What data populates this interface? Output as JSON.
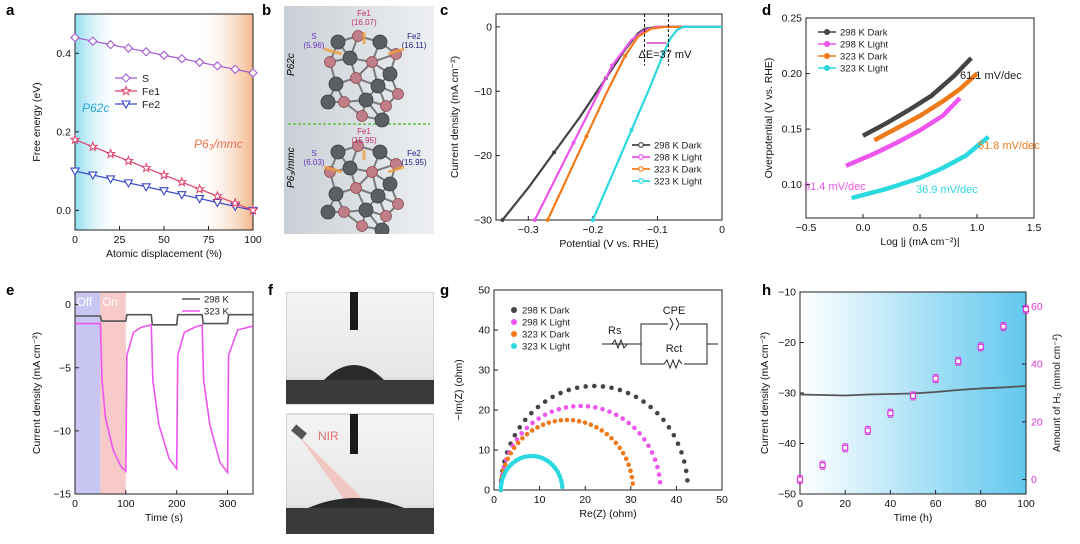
{
  "panel_labels": [
    "a",
    "b",
    "c",
    "d",
    "e",
    "f",
    "g",
    "h"
  ],
  "chart_data": [
    {
      "id": "a",
      "type": "line",
      "xlabel": "Atomic displacement (%)",
      "ylabel": "Free energy (eV)",
      "xlim": [
        0,
        100
      ],
      "ylim": [
        -0.05,
        0.5
      ],
      "xticks": [
        0,
        25,
        50,
        75,
        100
      ],
      "yticks": [
        0.0,
        0.2,
        0.4
      ],
      "region_labels": [
        "P62c",
        "P6₃/mmc"
      ],
      "series": [
        {
          "name": "Fe2",
          "color": "#3a47c8",
          "marker": "triangle-down",
          "x": [
            0,
            10,
            20,
            30,
            40,
            50,
            60,
            70,
            80,
            90,
            100
          ],
          "values": [
            0.1,
            0.09,
            0.08,
            0.07,
            0.06,
            0.05,
            0.04,
            0.03,
            0.02,
            0.01,
            0.0
          ]
        },
        {
          "name": "Fe1",
          "color": "#e0406a",
          "marker": "star",
          "x": [
            0,
            10,
            20,
            30,
            40,
            50,
            60,
            70,
            80,
            90,
            100
          ],
          "values": [
            0.18,
            0.162,
            0.144,
            0.126,
            0.108,
            0.09,
            0.072,
            0.054,
            0.036,
            0.018,
            0.0
          ]
        },
        {
          "name": "S",
          "color": "#a45ad0",
          "marker": "diamond",
          "x": [
            0,
            10,
            20,
            30,
            40,
            50,
            60,
            70,
            80,
            90,
            100
          ],
          "values": [
            0.44,
            0.431,
            0.422,
            0.413,
            0.404,
            0.395,
            0.386,
            0.377,
            0.368,
            0.359,
            0.35
          ]
        }
      ]
    },
    {
      "id": "b",
      "type": "diagram",
      "top": {
        "phase": "P62c",
        "S": "S\n(5.96)",
        "Fe1": "Fe1\n(16.07)",
        "Fe2": "Fe2\n(16.11)"
      },
      "bottom": {
        "phase": "P6₃/mmc",
        "S": "S\n(6.03)",
        "Fe1": "Fe1\n(15.95)",
        "Fe2": "Fe2\n(15.95)"
      }
    },
    {
      "id": "c",
      "type": "line",
      "xlabel": "Potential (V vs. RHE)",
      "ylabel": "Current density (mA cm⁻²)",
      "xlim": [
        -0.35,
        0.0
      ],
      "ylim": [
        -30,
        2
      ],
      "xticks": [
        -0.3,
        -0.2,
        -0.1,
        0.0
      ],
      "yticks": [
        0,
        -10,
        -20,
        -30
      ],
      "annotation": "ΔE=37 mV",
      "series": [
        {
          "name": "298 K Dark",
          "color": "#444444",
          "x": [
            -0.34,
            -0.3,
            -0.26,
            -0.22,
            -0.18,
            -0.15,
            -0.13,
            -0.12,
            -0.1,
            0.0
          ],
          "values": [
            -30,
            -25,
            -19.5,
            -14,
            -8,
            -3.5,
            -1,
            -0.3,
            0,
            0
          ]
        },
        {
          "name": "298 K Light",
          "color": "#ee55ee",
          "x": [
            -0.29,
            -0.26,
            -0.23,
            -0.2,
            -0.17,
            -0.14,
            -0.12,
            -0.1,
            0.0
          ],
          "values": [
            -30,
            -24,
            -18,
            -12,
            -6,
            -2,
            -0.5,
            0,
            0
          ]
        },
        {
          "name": "323 K Dark",
          "color": "#f07a1a",
          "x": [
            -0.27,
            -0.24,
            -0.21,
            -0.18,
            -0.15,
            -0.13,
            -0.11,
            -0.09,
            0.0
          ],
          "values": [
            -30,
            -23.5,
            -17,
            -10.5,
            -4.5,
            -1.5,
            -0.3,
            0,
            0
          ]
        },
        {
          "name": "323 K Light",
          "color": "#2ad8e0",
          "x": [
            -0.2,
            -0.17,
            -0.14,
            -0.11,
            -0.09,
            -0.08,
            -0.07,
            -0.06,
            0.0
          ],
          "values": [
            -30,
            -23,
            -16,
            -9,
            -4,
            -1.8,
            -0.5,
            0,
            0
          ]
        }
      ]
    },
    {
      "id": "d",
      "type": "line",
      "xlabel": "Log |j (mA cm⁻²)|",
      "ylabel": "Overpotential (V vs. RHE)",
      "xlim": [
        -0.5,
        1.5
      ],
      "ylim": [
        0.07,
        0.25
      ],
      "xticks": [
        -0.5,
        0.0,
        0.5,
        1.0,
        1.5
      ],
      "yticks": [
        0.1,
        0.15,
        0.2,
        0.25
      ],
      "slope_labels": [
        "61.1 mV/dec",
        "51.8 mV/dec",
        "51.4 mV/dec",
        "36.9 mV/dec"
      ],
      "series": [
        {
          "name": "298 K Dark",
          "color": "#444444",
          "x": [
            0.0,
            0.2,
            0.4,
            0.6,
            0.8,
            0.95
          ],
          "values": [
            0.144,
            0.155,
            0.167,
            0.18,
            0.198,
            0.214
          ]
        },
        {
          "name": "298 K Light",
          "color": "#ee55ee",
          "x": [
            -0.15,
            0.1,
            0.3,
            0.5,
            0.7,
            0.85
          ],
          "values": [
            0.117,
            0.128,
            0.138,
            0.149,
            0.162,
            0.178
          ]
        },
        {
          "name": "323 K Dark",
          "color": "#f07a1a",
          "x": [
            0.1,
            0.3,
            0.5,
            0.7,
            0.85,
            1.0
          ],
          "values": [
            0.14,
            0.151,
            0.162,
            0.175,
            0.186,
            0.2
          ]
        },
        {
          "name": "323 K Light",
          "color": "#2ad8e0",
          "x": [
            -0.1,
            0.2,
            0.5,
            0.7,
            0.9,
            1.1
          ],
          "values": [
            0.088,
            0.096,
            0.106,
            0.115,
            0.126,
            0.143
          ]
        }
      ]
    },
    {
      "id": "e",
      "type": "line",
      "xlabel": "Time (s)",
      "ylabel": "Current density (mA cm⁻²)",
      "xlim": [
        0,
        350
      ],
      "ylim": [
        -15,
        1
      ],
      "xticks": [
        0,
        100,
        200,
        300
      ],
      "yticks": [
        0,
        -5,
        -10,
        -15
      ],
      "region_labels": [
        "Off",
        "On"
      ],
      "series": [
        {
          "name": "298 K",
          "color": "#555555",
          "x": [
            0,
            50,
            52,
            100,
            102,
            150,
            152,
            200,
            202,
            250,
            252,
            300,
            302,
            350
          ],
          "values": [
            -0.9,
            -0.9,
            -1.3,
            -1.3,
            -0.8,
            -0.8,
            -1.6,
            -1.6,
            -0.8,
            -0.8,
            -1.5,
            -1.5,
            -0.8,
            -0.8
          ]
        },
        {
          "name": "323 K",
          "color": "#ee55ee",
          "x": [
            0,
            50,
            53,
            60,
            75,
            90,
            100,
            102,
            115,
            130,
            150,
            153,
            165,
            185,
            200,
            202,
            215,
            235,
            250,
            253,
            265,
            285,
            300,
            302,
            320,
            350
          ],
          "values": [
            -1.5,
            -1.5,
            -6,
            -9,
            -11.5,
            -12.8,
            -13.2,
            -4,
            -2.2,
            -1.8,
            -1.6,
            -6,
            -9.5,
            -12.2,
            -13,
            -4,
            -2.2,
            -1.8,
            -1.6,
            -6,
            -9.5,
            -12.5,
            -13.3,
            -4,
            -2,
            -1.7
          ]
        }
      ]
    },
    {
      "id": "f",
      "type": "diagram",
      "overlay_label": "NIR"
    },
    {
      "id": "g",
      "type": "scatter",
      "xlabel": "Re(Z) (ohm)",
      "ylabel": "−Im(Z) (ohm)",
      "xlim": [
        0,
        50
      ],
      "ylim": [
        0,
        50
      ],
      "xticks": [
        0,
        10,
        20,
        30,
        40,
        50
      ],
      "yticks": [
        0,
        10,
        20,
        30,
        40,
        50
      ],
      "circuit_labels": [
        "CPE",
        "Rs",
        "Rct"
      ],
      "series": [
        {
          "name": "298 K Dark",
          "color": "#444444",
          "x0": 1.5,
          "x1": 42.5,
          "peak": 26
        },
        {
          "name": "298 K Light",
          "color": "#ee55ee",
          "x0": 1.5,
          "x1": 36.5,
          "peak": 21
        },
        {
          "name": "323 K Dark",
          "color": "#f07a1a",
          "x0": 1.5,
          "x1": 30.5,
          "peak": 17.5
        },
        {
          "name": "323 K Light",
          "color": "#2ad8e0",
          "x0": 1.5,
          "x1": 15,
          "peak": 8.5
        }
      ]
    },
    {
      "id": "h",
      "type": "line",
      "xlabel": "Time (h)",
      "ylabel": "Current density (mA cm⁻²)",
      "y2label": "Amount of H₂ (mmol cm⁻²)",
      "xlim": [
        0,
        100
      ],
      "ylim": [
        -50,
        -10
      ],
      "y2lim": [
        -5,
        65
      ],
      "xticks": [
        0,
        20,
        40,
        60,
        80,
        100
      ],
      "yticks": [
        -10,
        -20,
        -30,
        -40,
        -50
      ],
      "y2ticks": [
        0,
        20,
        40,
        60
      ],
      "series": [
        {
          "name": "current",
          "color": "#555555",
          "x": [
            0,
            10,
            20,
            30,
            40,
            50,
            60,
            70,
            80,
            90,
            100
          ],
          "values": [
            -30.3,
            -30.4,
            -30.5,
            -30.3,
            -30.2,
            -30.1,
            -29.8,
            -29.4,
            -29.1,
            -28.9,
            -28.6
          ]
        },
        {
          "name": "H2",
          "color": "#dd33dd",
          "axis": "y2",
          "x": [
            0,
            10,
            20,
            30,
            40,
            50,
            60,
            70,
            80,
            90,
            100
          ],
          "values": [
            0,
            5,
            11,
            17,
            23,
            29,
            35,
            41,
            46,
            53,
            59
          ]
        }
      ]
    }
  ]
}
